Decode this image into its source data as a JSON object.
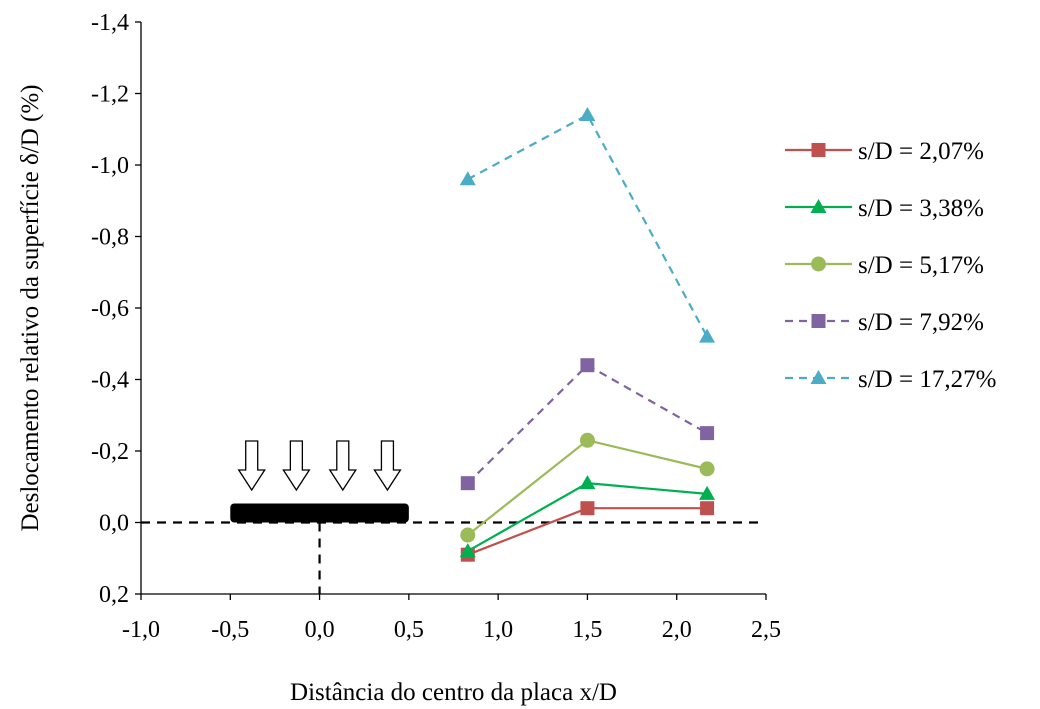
{
  "chart_data": {
    "type": "line",
    "title": "",
    "xlabel": "Distância do centro da placa x/D",
    "ylabel": "Deslocamento relativo da superfície δ/D (%)",
    "xlim": [
      -1.0,
      2.5
    ],
    "ylim": [
      0.2,
      -1.4
    ],
    "y_axis_reversed": true,
    "x_ticks": [
      -1.0,
      -0.5,
      0.0,
      0.5,
      1.0,
      1.5,
      2.0,
      2.5
    ],
    "x_tick_labels": [
      "-1,0",
      "-0,5",
      "0,0",
      "0,5",
      "1,0",
      "1,5",
      "2,0",
      "2,5"
    ],
    "y_ticks": [
      -1.4,
      -1.2,
      -1.0,
      -0.8,
      -0.6,
      -0.4,
      -0.2,
      0.0,
      0.2
    ],
    "y_tick_labels": [
      "-1,4",
      "-1,2",
      "-1,0",
      "-0,8",
      "-0,6",
      "-0,4",
      "-0,2",
      "0,0",
      "0,2"
    ],
    "grid": false,
    "legend_position": "right",
    "x": [
      0.83,
      1.5,
      2.17
    ],
    "series": [
      {
        "name": "s/D = 2,07%",
        "values": [
          0.09,
          -0.04,
          -0.04
        ],
        "color": "#c0504d",
        "marker": "square",
        "dashed": false
      },
      {
        "name": "s/D = 3,38%",
        "values": [
          0.08,
          -0.11,
          -0.08
        ],
        "color": "#00b050",
        "marker": "triangle",
        "dashed": false
      },
      {
        "name": "s/D = 5,17%",
        "values": [
          0.035,
          -0.23,
          -0.15
        ],
        "color": "#9bbb59",
        "marker": "circle",
        "dashed": false
      },
      {
        "name": "s/D = 7,92%",
        "values": [
          -0.11,
          -0.44,
          -0.25
        ],
        "color": "#8064a2",
        "marker": "square",
        "dashed": true
      },
      {
        "name": "s/D = 17,27%",
        "values": [
          -0.96,
          -1.14,
          -0.52
        ],
        "color": "#4bacc6",
        "marker": "triangle",
        "dashed": true
      }
    ],
    "annotations": {
      "zero_line_y": 0.0,
      "center_line_x": 0.0,
      "plate": {
        "x_from": -0.5,
        "x_to": 0.5
      },
      "load_arrows_x": [
        -0.38,
        -0.13,
        0.13,
        0.38
      ]
    }
  }
}
